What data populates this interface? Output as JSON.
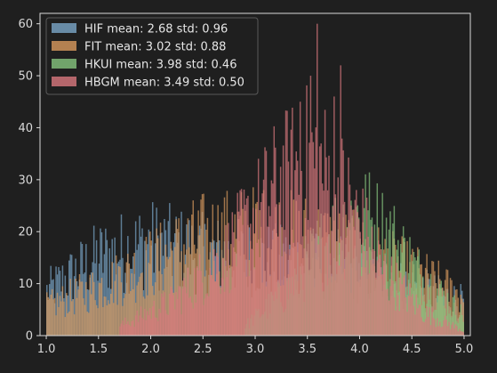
{
  "chart_data": {
    "type": "bar",
    "subtype": "overlapping histogram",
    "title": "",
    "xlabel": "",
    "ylabel": "",
    "xlim": [
      0.94,
      5.06
    ],
    "ylim": [
      0,
      62
    ],
    "x_ticks": [
      "1.0",
      "1.5",
      "2.0",
      "2.5",
      "3.0",
      "3.5",
      "4.0",
      "4.5",
      "5.0"
    ],
    "y_ticks": [
      "0",
      "10",
      "20",
      "30",
      "40",
      "50",
      "60"
    ],
    "grid": false,
    "legend_position": "top-left",
    "bin_width": 0.0125,
    "series": [
      {
        "name": "HIF mean: 2.68 std: 0.96",
        "color": "#7aa6c8",
        "range": [
          1.0,
          5.0
        ],
        "envelope": [
          [
            1.0,
            9
          ],
          [
            1.5,
            16
          ],
          [
            2.0,
            19
          ],
          [
            2.5,
            17
          ],
          [
            3.0,
            16
          ],
          [
            3.5,
            15
          ],
          [
            4.0,
            13
          ],
          [
            4.5,
            10
          ],
          [
            5.0,
            7
          ]
        ]
      },
      {
        "name": "FIT mean: 3.02 std: 0.88",
        "color": "#d99a5e",
        "range": [
          1.0,
          5.0
        ],
        "envelope": [
          [
            1.0,
            6
          ],
          [
            1.5,
            10
          ],
          [
            2.0,
            15
          ],
          [
            2.5,
            20
          ],
          [
            3.0,
            21
          ],
          [
            3.5,
            20
          ],
          [
            4.0,
            17
          ],
          [
            4.5,
            13
          ],
          [
            5.0,
            8
          ]
        ]
      },
      {
        "name": "HKUI mean: 3.98 std: 0.46",
        "color": "#86c47e",
        "range": [
          2.9,
          5.0
        ],
        "envelope": [
          [
            2.9,
            2
          ],
          [
            3.3,
            9
          ],
          [
            3.7,
            20
          ],
          [
            4.0,
            25
          ],
          [
            4.3,
            20
          ],
          [
            4.6,
            12
          ],
          [
            5.0,
            4
          ]
        ]
      },
      {
        "name": "HBGM mean: 3.49 std: 0.50",
        "color": "#d9787e",
        "range": [
          1.7,
          5.0
        ],
        "envelope": [
          [
            1.7,
            2
          ],
          [
            2.2,
            7
          ],
          [
            2.7,
            16
          ],
          [
            3.2,
            30
          ],
          [
            3.55,
            36
          ],
          [
            3.9,
            27
          ],
          [
            4.2,
            14
          ],
          [
            4.6,
            5
          ],
          [
            5.0,
            1
          ]
        ],
        "spikes": [
          [
            3.59,
            60
          ],
          [
            3.52,
            50
          ],
          [
            3.43,
            45
          ],
          [
            3.81,
            52
          ],
          [
            3.75,
            46
          ]
        ]
      }
    ]
  }
}
